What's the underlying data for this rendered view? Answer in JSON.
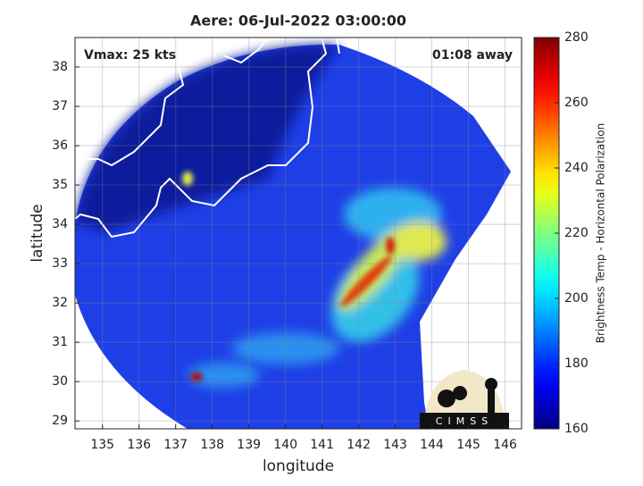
{
  "chart_data": {
    "type": "swath-map",
    "title": "Aere: 06-Jul-2022 03:00:00",
    "annotations": [
      "Vmax: 25 kts",
      "01:08 away"
    ],
    "xlabel": "longitude",
    "ylabel": "latitude",
    "xlim": [
      134.25,
      146.45
    ],
    "xticks": [
      135,
      136,
      137,
      138,
      139,
      140,
      141,
      142,
      143,
      144,
      145,
      146
    ],
    "ylim": [
      28.8,
      38.75
    ],
    "yticks": [
      29,
      30,
      31,
      32,
      33,
      34,
      35,
      36,
      37,
      38
    ],
    "grid": true,
    "colorbar": {
      "label": "Brightness Temp - Horizontal Polarization",
      "colormap": "jet",
      "lim": [
        160,
        280
      ],
      "ticks": [
        160,
        180,
        200,
        220,
        240,
        260,
        280
      ]
    },
    "logo_text": "CIMSS"
  }
}
